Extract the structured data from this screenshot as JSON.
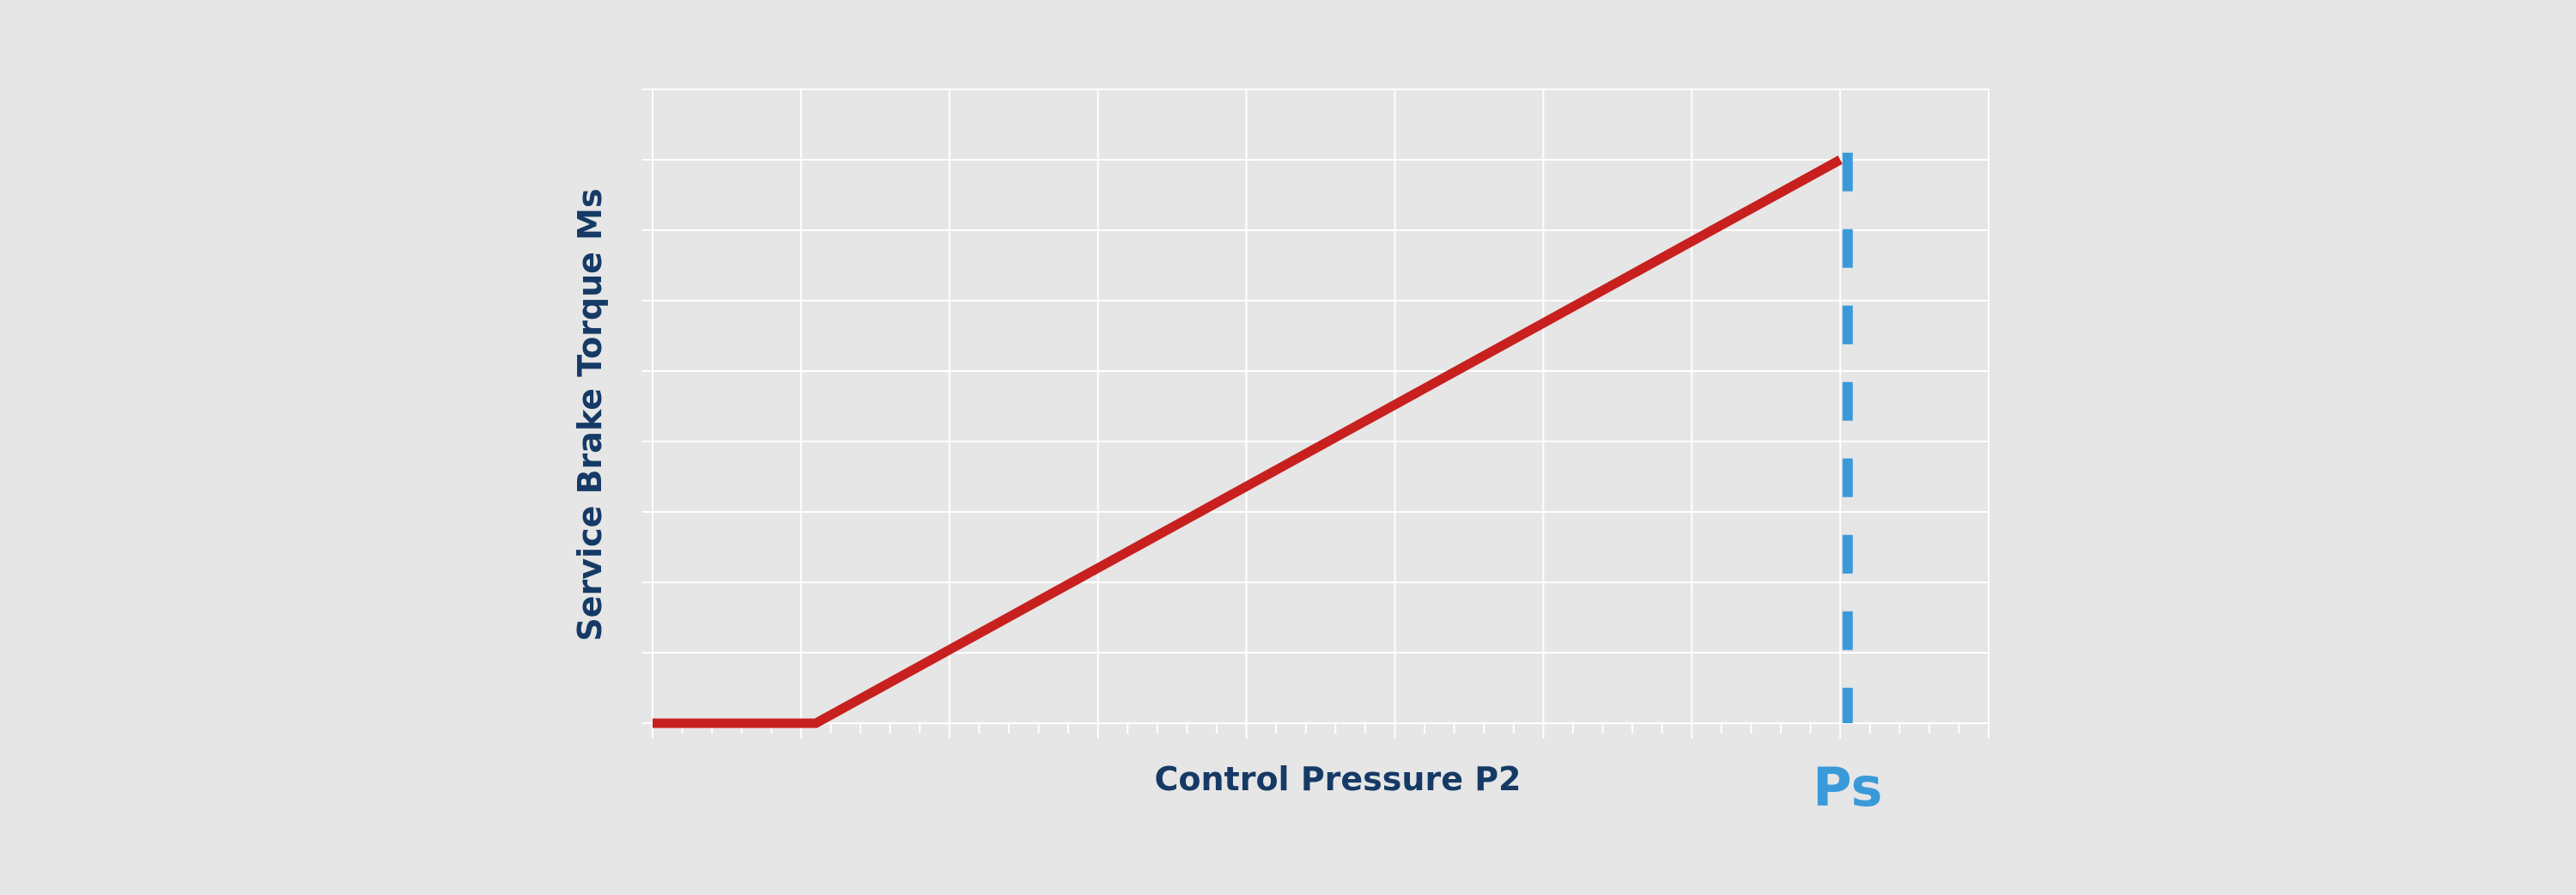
{
  "chart_data": {
    "type": "line",
    "xlabel": "Control Pressure P2",
    "ylabel": "Service Brake Torque Ms",
    "xlim": [
      0,
      9
    ],
    "ylim": [
      0,
      9
    ],
    "x_major_ticks": [
      0,
      1,
      2,
      3,
      4,
      5,
      6,
      7,
      8,
      9
    ],
    "x_minor_per_major": 5,
    "y_major_ticks": [
      0,
      1,
      2,
      3,
      4,
      5,
      6,
      7,
      8,
      9
    ],
    "grid": true,
    "legend": false,
    "series": [
      {
        "x": [
          0,
          1.1,
          8.0
        ],
        "y": [
          0,
          0,
          8.0
        ],
        "color": "#c8201f"
      }
    ],
    "reference_lines": [
      {
        "orientation": "vertical",
        "x": 8.05,
        "y_range": [
          0,
          8.1
        ],
        "style": "dashed",
        "color": "#3a9ad9",
        "label": "Ps"
      }
    ],
    "colors": {
      "background": "#e6e6e6",
      "grid": "#ffffff",
      "axis_text": "#163a66",
      "ps_text": "#3a9ad9"
    }
  }
}
